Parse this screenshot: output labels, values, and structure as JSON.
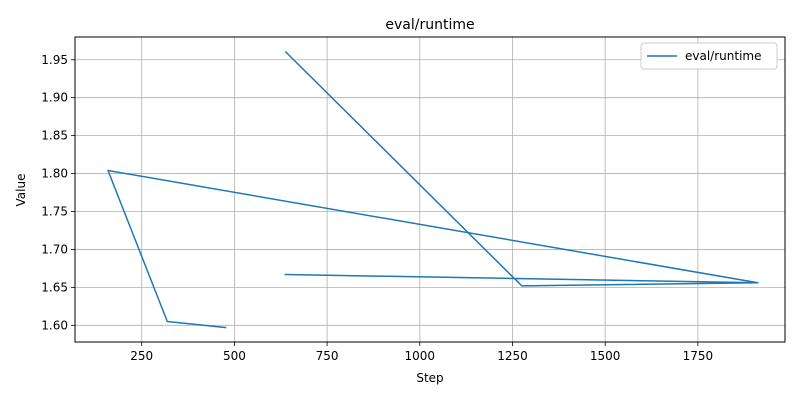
{
  "chart_data": {
    "type": "line",
    "title": "eval/runtime",
    "xlabel": "Step",
    "ylabel": "Value",
    "xlim": [
      70,
      1985
    ],
    "ylim": [
      1.578,
      1.98
    ],
    "xticks": [
      250,
      500,
      750,
      1000,
      1250,
      1500,
      1750
    ],
    "xtick_labels": [
      "250",
      "500",
      "750",
      "1000",
      "1250",
      "1500",
      "1750"
    ],
    "yticks": [
      1.6,
      1.65,
      1.7,
      1.75,
      1.8,
      1.85,
      1.9,
      1.95
    ],
    "ytick_labels": [
      "1.60",
      "1.65",
      "1.70",
      "1.75",
      "1.80",
      "1.85",
      "1.90",
      "1.95"
    ],
    "grid": true,
    "legend_position": "top-right",
    "series": [
      {
        "name": "eval/runtime",
        "color": "#1f77b4",
        "x": [
          637,
          1275,
          1912,
          637,
          1912,
          159,
          319,
          478
        ],
        "y": [
          1.961,
          1.652,
          1.656,
          1.667,
          1.656,
          1.804,
          1.605,
          1.597
        ]
      }
    ]
  }
}
